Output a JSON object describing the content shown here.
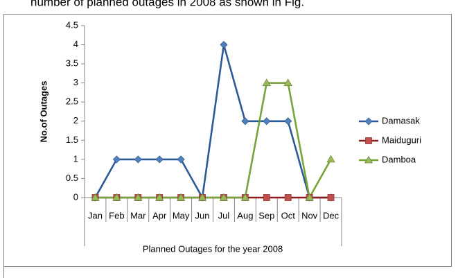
{
  "caption": "number of planned outages in 2008 as shown in Fig.",
  "chart_data": {
    "type": "line",
    "x_label": "Planned Outages for the year 2008",
    "y_label": "No.of Outages",
    "categories": [
      "Jan",
      "Feb",
      "Mar",
      "Apr",
      "May",
      "Jun",
      "Jul",
      "Aug",
      "Sep",
      "Oct",
      "Nov",
      "Dec"
    ],
    "series": [
      {
        "name": "Damasak",
        "color": "#2c5a96",
        "marker_color": "#4f81bd",
        "marker": "diamond",
        "values": [
          0,
          1,
          1,
          1,
          1,
          0,
          4,
          2,
          2,
          2,
          0,
          0
        ]
      },
      {
        "name": "Maiduguri",
        "color": "#8b1c1c",
        "marker_color": "#c0504d",
        "marker": "square",
        "values": [
          0,
          0,
          0,
          0,
          0,
          0,
          0,
          0,
          0,
          0,
          0,
          0
        ]
      },
      {
        "name": "Damboa",
        "color": "#76a33a",
        "marker_color": "#9bbb59",
        "marker": "triangle",
        "values": [
          0,
          0,
          0,
          0,
          0,
          0,
          0,
          0,
          3,
          3,
          0,
          1
        ]
      }
    ],
    "ylim": [
      0,
      4.5
    ],
    "yticks": [
      0,
      0.5,
      1,
      1.5,
      2,
      2.5,
      3,
      3.5,
      4,
      4.5
    ],
    "legend": "right",
    "grid": false
  }
}
